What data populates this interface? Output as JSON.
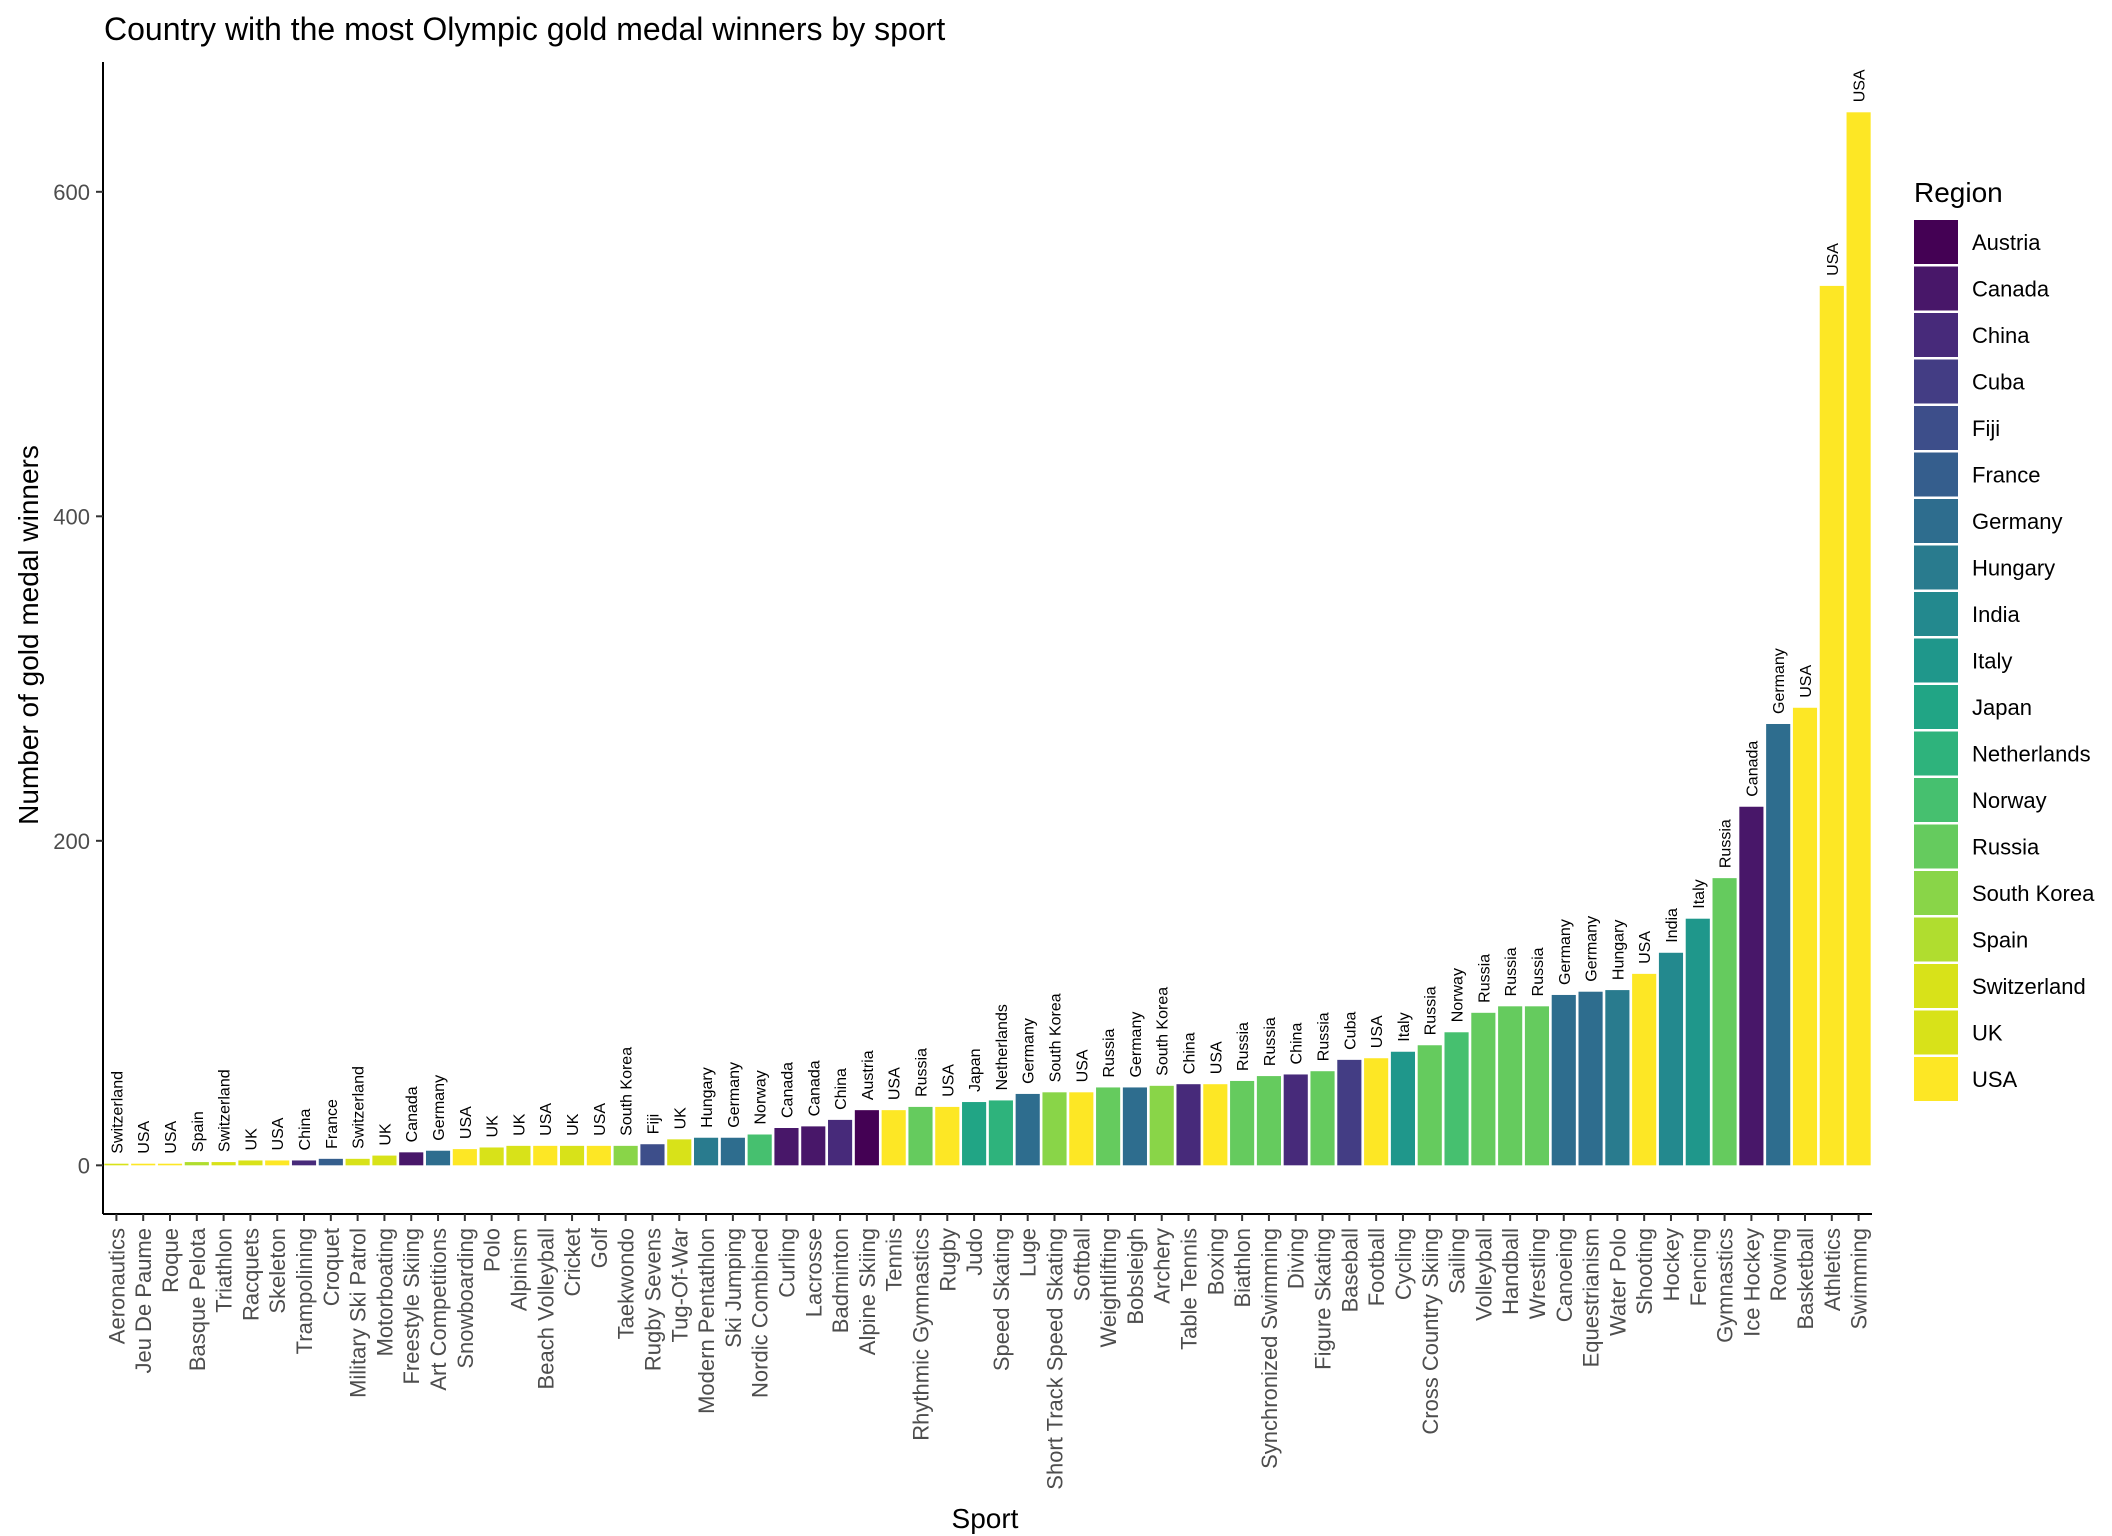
{
  "chart_data": {
    "type": "bar",
    "title": "Country with the most Olympic gold medal winners by sport",
    "xlabel": "Sport",
    "ylabel": "Number of gold medal winners",
    "ylim": [
      -30,
      680
    ],
    "yticks": [
      0,
      200,
      400,
      600
    ],
    "grid": false,
    "legend": {
      "title": "Region",
      "placement": "right"
    },
    "regions": [
      "Austria",
      "Canada",
      "China",
      "Cuba",
      "Fiji",
      "France",
      "Germany",
      "Hungary",
      "India",
      "Italy",
      "Japan",
      "Netherlands",
      "Norway",
      "Russia",
      "South Korea",
      "Spain",
      "Switzerland",
      "UK",
      "USA"
    ],
    "region_colors": {
      "Austria": "#440154",
      "Canada": "#481769",
      "China": "#472a7a",
      "Cuba": "#433d84",
      "Fiji": "#3d4e8a",
      "France": "#355e8d",
      "Germany": "#2e6d8e",
      "Hungary": "#297b8e",
      "India": "#23898e",
      "Italy": "#1f978b",
      "Japan": "#21a585",
      "Netherlands": "#2eb37c",
      "Norway": "#46c06f",
      "Russia": "#65cb5e",
      "South Korea": "#89d548",
      "Spain": "#b0dd2f",
      "Switzerland": "#d8e219",
      "UK": "#d8e219",
      "USA": "#fde725"
    },
    "bars": [
      {
        "sport": "Aeronautics",
        "region": "Switzerland",
        "value": 1
      },
      {
        "sport": "Jeu De Paume",
        "region": "USA",
        "value": 1
      },
      {
        "sport": "Roque",
        "region": "USA",
        "value": 1
      },
      {
        "sport": "Basque Pelota",
        "region": "Spain",
        "value": 2
      },
      {
        "sport": "Triathlon",
        "region": "Switzerland",
        "value": 2
      },
      {
        "sport": "Racquets",
        "region": "UK",
        "value": 3
      },
      {
        "sport": "Skeleton",
        "region": "USA",
        "value": 3
      },
      {
        "sport": "Trampolining",
        "region": "China",
        "value": 3
      },
      {
        "sport": "Croquet",
        "region": "France",
        "value": 4
      },
      {
        "sport": "Military Ski Patrol",
        "region": "Switzerland",
        "value": 4
      },
      {
        "sport": "Motorboating",
        "region": "UK",
        "value": 6
      },
      {
        "sport": "Freestyle Skiing",
        "region": "Canada",
        "value": 8
      },
      {
        "sport": "Art Competitions",
        "region": "Germany",
        "value": 9
      },
      {
        "sport": "Snowboarding",
        "region": "USA",
        "value": 10
      },
      {
        "sport": "Polo",
        "region": "UK",
        "value": 11
      },
      {
        "sport": "Alpinism",
        "region": "UK",
        "value": 12
      },
      {
        "sport": "Beach Volleyball",
        "region": "USA",
        "value": 12
      },
      {
        "sport": "Cricket",
        "region": "UK",
        "value": 12
      },
      {
        "sport": "Golf",
        "region": "USA",
        "value": 12
      },
      {
        "sport": "Taekwondo",
        "region": "South Korea",
        "value": 12
      },
      {
        "sport": "Rugby Sevens",
        "region": "Fiji",
        "value": 13
      },
      {
        "sport": "Tug-Of-War",
        "region": "UK",
        "value": 16
      },
      {
        "sport": "Modern Pentathlon",
        "region": "Hungary",
        "value": 17
      },
      {
        "sport": "Ski Jumping",
        "region": "Germany",
        "value": 17
      },
      {
        "sport": "Nordic Combined",
        "region": "Norway",
        "value": 19
      },
      {
        "sport": "Curling",
        "region": "Canada",
        "value": 23
      },
      {
        "sport": "Lacrosse",
        "region": "Canada",
        "value": 24
      },
      {
        "sport": "Badminton",
        "region": "China",
        "value": 28
      },
      {
        "sport": "Alpine Skiing",
        "region": "Austria",
        "value": 34
      },
      {
        "sport": "Tennis",
        "region": "USA",
        "value": 34
      },
      {
        "sport": "Rhythmic Gymnastics",
        "region": "Russia",
        "value": 36
      },
      {
        "sport": "Rugby",
        "region": "USA",
        "value": 36
      },
      {
        "sport": "Judo",
        "region": "Japan",
        "value": 39
      },
      {
        "sport": "Speed Skating",
        "region": "Netherlands",
        "value": 40
      },
      {
        "sport": "Luge",
        "region": "Germany",
        "value": 44
      },
      {
        "sport": "Short Track Speed Skating",
        "region": "South Korea",
        "value": 45
      },
      {
        "sport": "Softball",
        "region": "USA",
        "value": 45
      },
      {
        "sport": "Weightlifting",
        "region": "Russia",
        "value": 48
      },
      {
        "sport": "Bobsleigh",
        "region": "Germany",
        "value": 48
      },
      {
        "sport": "Archery",
        "region": "South Korea",
        "value": 49
      },
      {
        "sport": "Table Tennis",
        "region": "China",
        "value": 50
      },
      {
        "sport": "Boxing",
        "region": "USA",
        "value": 50
      },
      {
        "sport": "Biathlon",
        "region": "Russia",
        "value": 52
      },
      {
        "sport": "Synchronized Swimming",
        "region": "Russia",
        "value": 55
      },
      {
        "sport": "Diving",
        "region": "China",
        "value": 56
      },
      {
        "sport": "Figure Skating",
        "region": "Russia",
        "value": 58
      },
      {
        "sport": "Baseball",
        "region": "Cuba",
        "value": 65
      },
      {
        "sport": "Football",
        "region": "USA",
        "value": 66
      },
      {
        "sport": "Cycling",
        "region": "Italy",
        "value": 70
      },
      {
        "sport": "Cross Country Skiing",
        "region": "Russia",
        "value": 74
      },
      {
        "sport": "Sailing",
        "region": "Norway",
        "value": 82
      },
      {
        "sport": "Volleyball",
        "region": "Russia",
        "value": 94
      },
      {
        "sport": "Handball",
        "region": "Russia",
        "value": 98
      },
      {
        "sport": "Wrestling",
        "region": "Russia",
        "value": 98
      },
      {
        "sport": "Canoeing",
        "region": "Germany",
        "value": 105
      },
      {
        "sport": "Equestrianism",
        "region": "Germany",
        "value": 107
      },
      {
        "sport": "Water Polo",
        "region": "Hungary",
        "value": 108
      },
      {
        "sport": "Shooting",
        "region": "USA",
        "value": 118
      },
      {
        "sport": "Hockey",
        "region": "India",
        "value": 131
      },
      {
        "sport": "Fencing",
        "region": "Italy",
        "value": 152
      },
      {
        "sport": "Gymnastics",
        "region": "Russia",
        "value": 177
      },
      {
        "sport": "Ice Hockey",
        "region": "Canada",
        "value": 221
      },
      {
        "sport": "Rowing",
        "region": "Germany",
        "value": 272
      },
      {
        "sport": "Basketball",
        "region": "USA",
        "value": 282
      },
      {
        "sport": "Athletics",
        "region": "USA",
        "value": 542
      },
      {
        "sport": "Swimming",
        "region": "USA",
        "value": 649
      }
    ]
  }
}
